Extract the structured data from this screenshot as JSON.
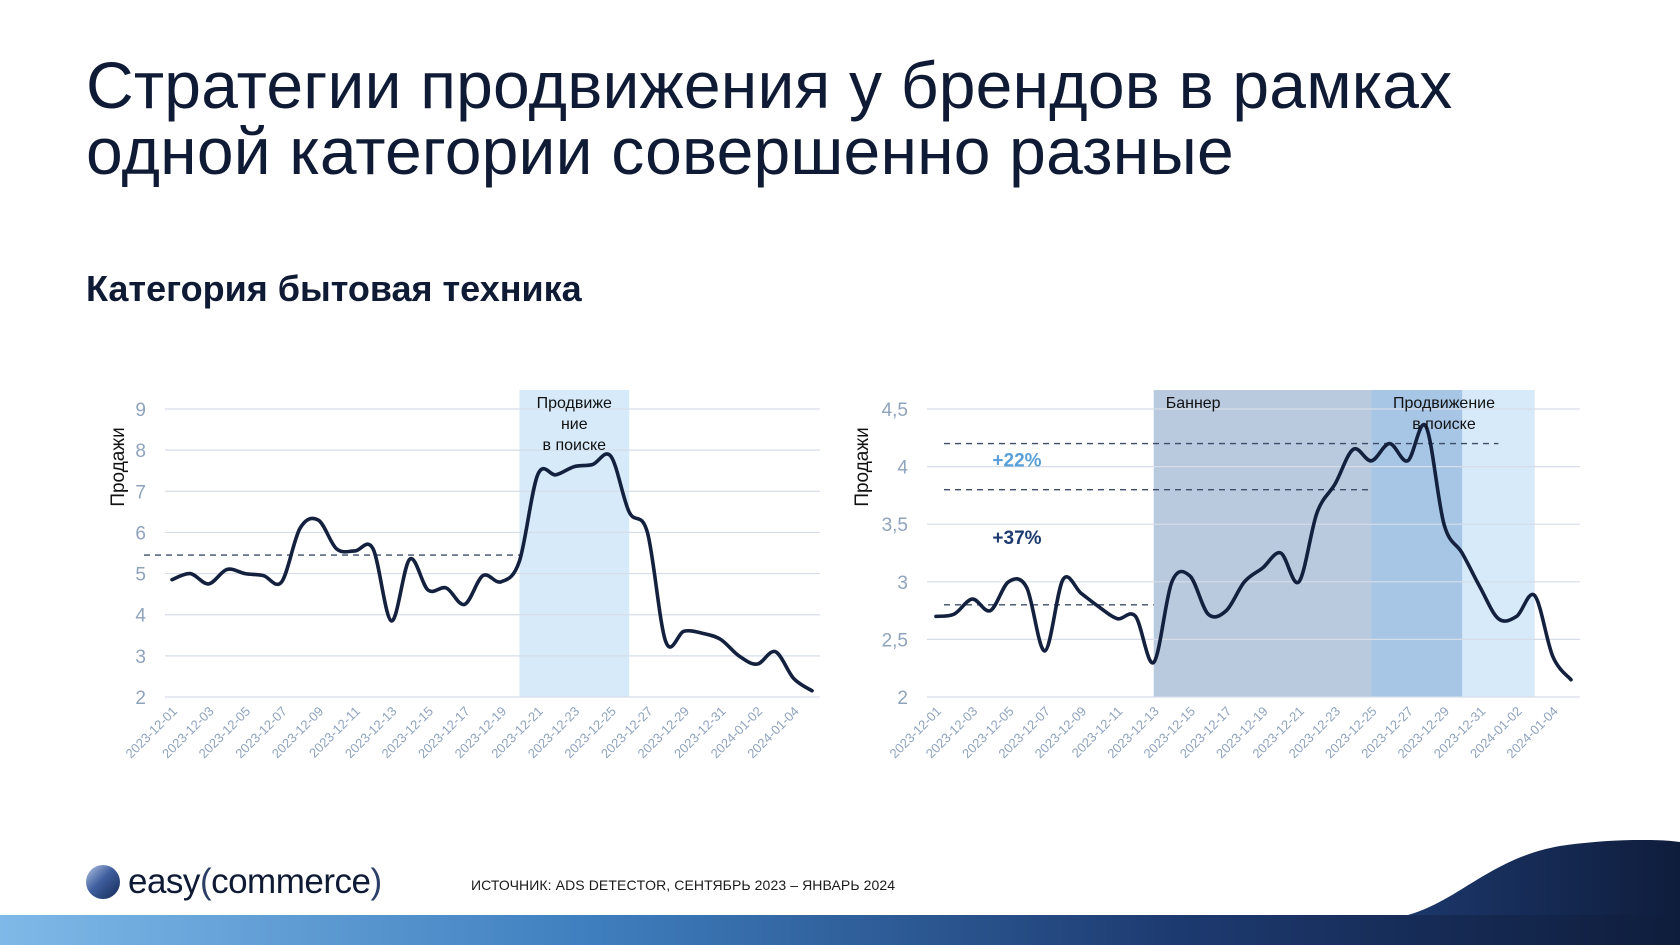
{
  "title_lines": [
    "Стратегии продвижения у брендов в рамках",
    "одной категории совершенно разные"
  ],
  "subtitle": "Категория бытовая техника",
  "footer": {
    "source": "ИСТОЧНИК: ADS DETECTOR, СЕНТЯБРЬ 2023 – ЯНВАРЬ 2024",
    "logo_word1": "easy",
    "logo_word2": "commerce",
    "logo_open": "(",
    "logo_close": ")"
  },
  "colors": {
    "line": "#13213f",
    "grid": "#d6dde8",
    "tick": "#8fa3bd",
    "promo_light": "#d6eaf9",
    "banner": "#b9c9de",
    "overlap": "#a7c6e6",
    "accent_light": "#5aa0d8",
    "accent_dark": "#1d3a70"
  },
  "chart_data": [
    {
      "type": "line",
      "ylabel": "Продажи",
      "ylim": [
        2,
        9
      ],
      "yticks": [
        "2",
        "3",
        "4",
        "5",
        "6",
        "7",
        "8",
        "9"
      ],
      "x_tick_labels": [
        "2023-12-01",
        "2023-12-03",
        "2023-12-05",
        "2023-12-07",
        "2023-12-09",
        "2023-12-11",
        "2023-12-13",
        "2023-12-15",
        "2023-12-17",
        "2023-12-19",
        "2023-12-21",
        "2023-12-23",
        "2023-12-25",
        "2023-12-27",
        "2023-12-29",
        "2023-12-31",
        "2024-01-02",
        "2024-01-04"
      ],
      "values": [
        4.85,
        5.0,
        4.75,
        5.1,
        5.0,
        4.95,
        4.8,
        6.1,
        6.3,
        5.6,
        5.55,
        5.6,
        3.85,
        5.35,
        4.6,
        4.65,
        4.25,
        4.95,
        4.8,
        5.3,
        7.4,
        7.4,
        7.6,
        7.65,
        7.85,
        6.5,
        6.0,
        3.35,
        3.6,
        3.55,
        3.4,
        3.0,
        2.8,
        3.1,
        2.45,
        2.15
      ],
      "reference_line": 5.45,
      "highlight": {
        "label_lines": [
          "Продвиже",
          "ние",
          "в поиске"
        ],
        "from_index": 19,
        "to_index": 25
      },
      "grid": true,
      "legend": "none"
    },
    {
      "type": "line",
      "ylabel": "Продажи",
      "ylim": [
        2,
        4.5
      ],
      "yticks": [
        "2",
        "2,5",
        "3",
        "3,5",
        "4",
        "4,5"
      ],
      "x_tick_labels": [
        "2023-12-01",
        "2023-12-03",
        "2023-12-05",
        "2023-12-07",
        "2023-12-09",
        "2023-12-11",
        "2023-12-13",
        "2023-12-15",
        "2023-12-17",
        "2023-12-19",
        "2023-12-21",
        "2023-12-23",
        "2023-12-25",
        "2023-12-27",
        "2023-12-29",
        "2023-12-31",
        "2024-01-02",
        "2024-01-04"
      ],
      "values": [
        2.7,
        2.72,
        2.85,
        2.75,
        3.0,
        2.95,
        2.4,
        3.02,
        2.9,
        2.78,
        2.68,
        2.7,
        2.3,
        3.0,
        3.05,
        2.72,
        2.75,
        3.0,
        3.12,
        3.25,
        3.0,
        3.6,
        3.85,
        4.15,
        4.05,
        4.2,
        4.05,
        4.35,
        3.5,
        3.25,
        2.95,
        2.68,
        2.7,
        2.88,
        2.35,
        2.15
      ],
      "reference_lines": [
        {
          "value": 2.8,
          "from_index": 0,
          "to_index": 12
        },
        {
          "value": 3.8,
          "from_index": 0,
          "to_index": 24
        },
        {
          "value": 4.2,
          "from_index": 0,
          "to_index": 31
        }
      ],
      "annotations": [
        {
          "text": "+22%",
          "x_index": 3,
          "y": 4.0,
          "style": "light"
        },
        {
          "text": "+37%",
          "x_index": 3,
          "y": 3.33,
          "style": "dark"
        }
      ],
      "highlights": [
        {
          "label_lines": [
            "Баннер"
          ],
          "from_index": 12,
          "to_index": 29,
          "kind": "banner"
        },
        {
          "label_lines": [
            "Продвижение",
            "в поиске"
          ],
          "from_index": 24,
          "to_index": 33,
          "kind": "promo"
        }
      ],
      "grid": true,
      "legend": "none"
    }
  ]
}
